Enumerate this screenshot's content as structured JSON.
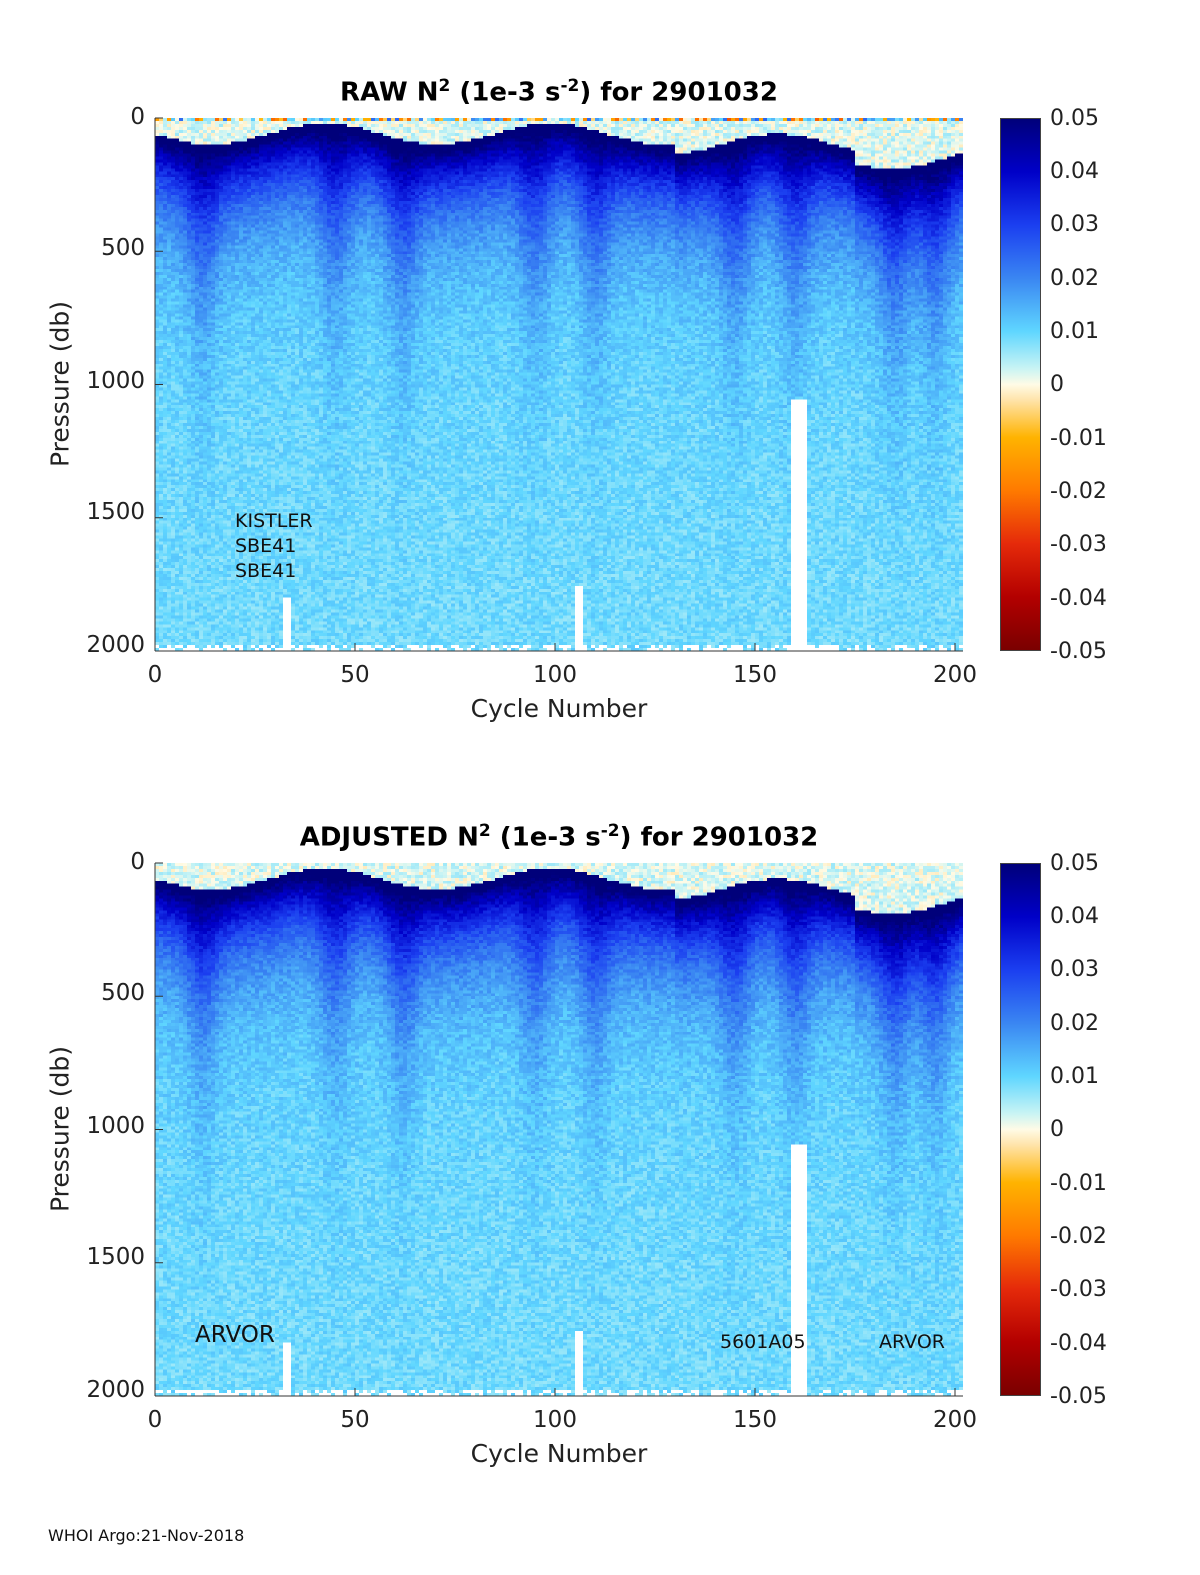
{
  "chart_data": [
    {
      "type": "heatmap",
      "panel": "raw",
      "title_main": "RAW N",
      "title_exp1": "2",
      "title_mid": " (1e-3 s",
      "title_exp2": "-2",
      "title_end": ") for 2901032",
      "xlabel": "Cycle Number",
      "ylabel": "Pressure (db)",
      "xlim": [
        0,
        202
      ],
      "ylim": [
        2000,
        0
      ],
      "x_ticks": [
        "0",
        "50",
        "100",
        "150",
        "200"
      ],
      "y_ticks": [
        "0",
        "500",
        "1000",
        "1500",
        "2000"
      ],
      "colorbar_ticks": [
        "0.05",
        "0.04",
        "0.03",
        "0.02",
        "0.01",
        "0",
        "-0.01",
        "-0.02",
        "-0.03",
        "-0.04",
        "-0.05"
      ],
      "clim": [
        -0.05,
        0.05
      ],
      "annotations": [
        "KISTLER",
        "SBE41",
        "SBE41"
      ]
    },
    {
      "type": "heatmap",
      "panel": "adjusted",
      "title_main": "ADJUSTED N",
      "title_exp1": "2",
      "title_mid": " (1e-3 s",
      "title_exp2": "-2",
      "title_end": ") for 2901032",
      "xlabel": "Cycle Number",
      "ylabel": "Pressure (db)",
      "xlim": [
        0,
        202
      ],
      "ylim": [
        2000,
        0
      ],
      "x_ticks": [
        "0",
        "50",
        "100",
        "150",
        "200"
      ],
      "y_ticks": [
        "0",
        "500",
        "1000",
        "1500",
        "2000"
      ],
      "colorbar_ticks": [
        "0.05",
        "0.04",
        "0.03",
        "0.02",
        "0.01",
        "0",
        "-0.01",
        "-0.02",
        "-0.03",
        "-0.04",
        "-0.05"
      ],
      "clim": [
        -0.05,
        0.05
      ],
      "annotations": [
        "ARVOR",
        "5601A05",
        "ARVOR"
      ]
    }
  ],
  "footer": "WHOI Argo:21-Nov-2018"
}
